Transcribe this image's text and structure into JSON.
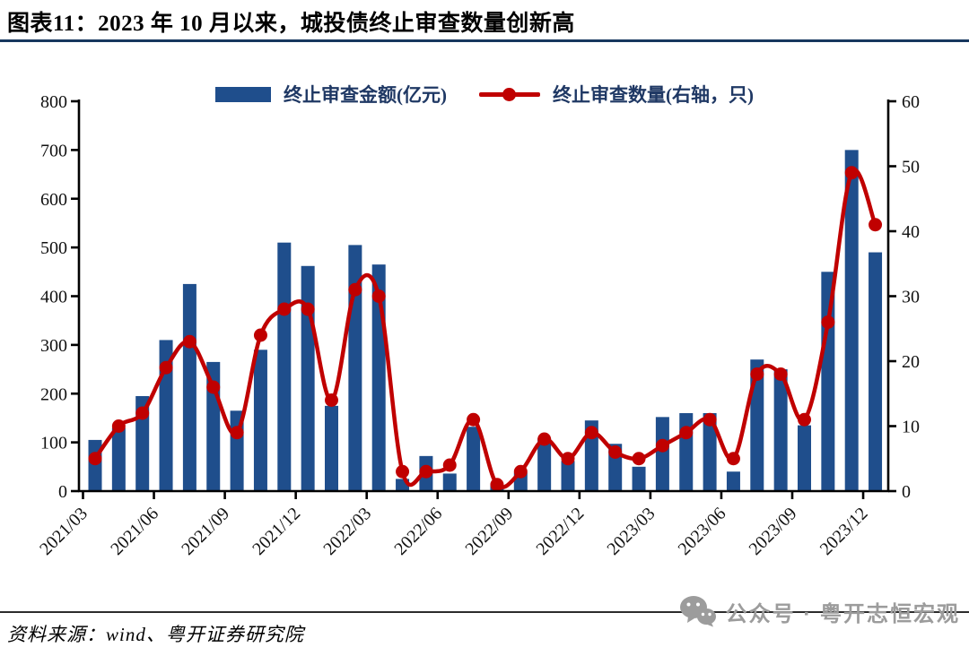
{
  "header": {
    "title": "图表11：2023 年 10 月以来，城投债终止审查数量创新高"
  },
  "legend": {
    "bar_label": "终止审查金额(亿元)",
    "line_label": "终止审查数量(右轴，只)"
  },
  "chart_data": {
    "type": "bar",
    "subtype": "bar+line combo, dual axis",
    "categories": [
      "2021/03",
      "2021/04",
      "2021/05",
      "2021/06",
      "2021/07",
      "2021/08",
      "2021/09",
      "2021/10",
      "2021/11",
      "2021/12",
      "2022/01",
      "2022/02",
      "2022/03",
      "2022/04",
      "2022/05",
      "2022/06",
      "2022/07",
      "2022/08",
      "2022/09",
      "2022/10",
      "2022/11",
      "2022/12",
      "2023/01",
      "2023/02",
      "2023/03",
      "2023/04",
      "2023/05",
      "2023/06",
      "2023/07",
      "2023/08",
      "2023/09",
      "2023/10",
      "2023/11",
      "2023/12"
    ],
    "x_tick_labels": [
      "2021/03",
      "2021/06",
      "2021/09",
      "2021/12",
      "2022/03",
      "2022/06",
      "2022/09",
      "2022/12",
      "2023/03",
      "2023/06",
      "2023/09",
      "2023/12"
    ],
    "series": [
      {
        "name": "终止审查金额(亿元)",
        "type": "bar",
        "axis": "left",
        "color": "#1F4E8C",
        "values": [
          105,
          130,
          195,
          310,
          425,
          265,
          165,
          290,
          510,
          462,
          175,
          505,
          465,
          25,
          72,
          36,
          132,
          12,
          38,
          108,
          62,
          145,
          97,
          50,
          152,
          160,
          160,
          40,
          270,
          250,
          135,
          450,
          700,
          490
        ]
      },
      {
        "name": "终止审查数量(右轴，只)",
        "type": "line",
        "axis": "right",
        "color": "#C00000",
        "values": [
          5,
          10,
          12,
          19,
          23,
          16,
          9,
          24,
          28,
          28,
          14,
          31,
          30,
          3,
          3,
          4,
          11,
          1,
          3,
          8,
          5,
          9,
          6,
          5,
          7,
          9,
          11,
          5,
          18,
          18,
          11,
          26,
          49,
          41
        ]
      }
    ],
    "left_axis": {
      "min": 0,
      "max": 800,
      "step": 100
    },
    "right_axis": {
      "min": 0,
      "max": 60,
      "step": 10
    },
    "grid": false,
    "legend_position": "top"
  },
  "footer": {
    "source": "资料来源：wind、粤开证券研究院",
    "watermark": "公众号 · 粤开志恒宏观",
    "watermark_icon": "wechat-icon"
  },
  "colors": {
    "bar": "#1F4E8C",
    "line": "#C00000",
    "axis": "#000000",
    "tick_label": "#111111",
    "title_rule": "#17375E",
    "legend_text": "#1F3864",
    "watermark": "#9C9C9C"
  }
}
